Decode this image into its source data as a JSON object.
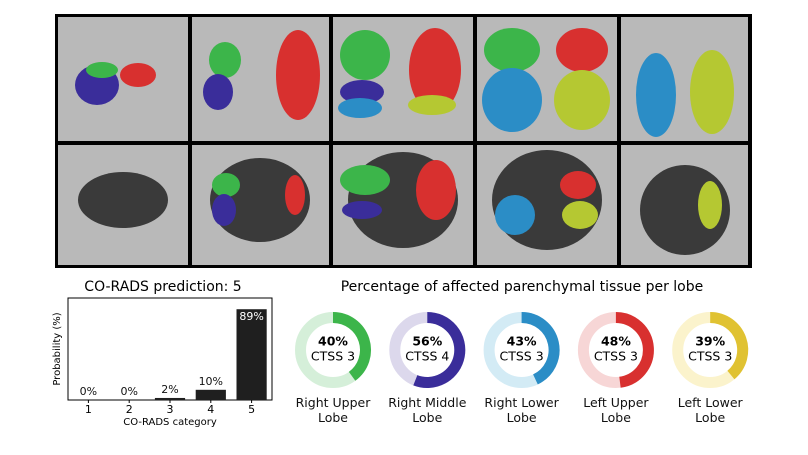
{
  "chart_data": [
    {
      "type": "bar",
      "title": "CO-RADS prediction: 5",
      "categories": [
        "1",
        "2",
        "3",
        "4",
        "5"
      ],
      "values": [
        0,
        0,
        2,
        10,
        89
      ],
      "value_labels": [
        "0%",
        "0%",
        "2%",
        "10%",
        "89%"
      ],
      "color": "#1f1f1f",
      "ylim": [
        0,
        100
      ],
      "y_label": "Probability (%)",
      "x_label": "CO-RADS category"
    },
    {
      "type": "donut",
      "title": "Percentage of affected parenchymal tissue per lobe",
      "categories": [
        "Right Upper Lobe",
        "Right Middle Lobe",
        "Right Lower Lobe",
        "Left Upper Lobe",
        "Left Lower Lobe"
      ],
      "values": [
        40,
        56,
        43,
        48,
        39
      ],
      "value_labels": [
        "40%",
        "56%",
        "43%",
        "48%",
        "39%"
      ],
      "sublabels": [
        "CTSS 3",
        "CTSS 4",
        "CTSS 3",
        "CTSS 3",
        "CTSS 3"
      ],
      "colors": [
        "#3cb54a",
        "#3a2d9a",
        "#2b8dc6",
        "#d8302f",
        "#e0c232"
      ],
      "light_colors": [
        "#d5efd9",
        "#dcd8ec",
        "#d3ebf5",
        "#f7d6d6",
        "#fbf3cc"
      ]
    }
  ]
}
